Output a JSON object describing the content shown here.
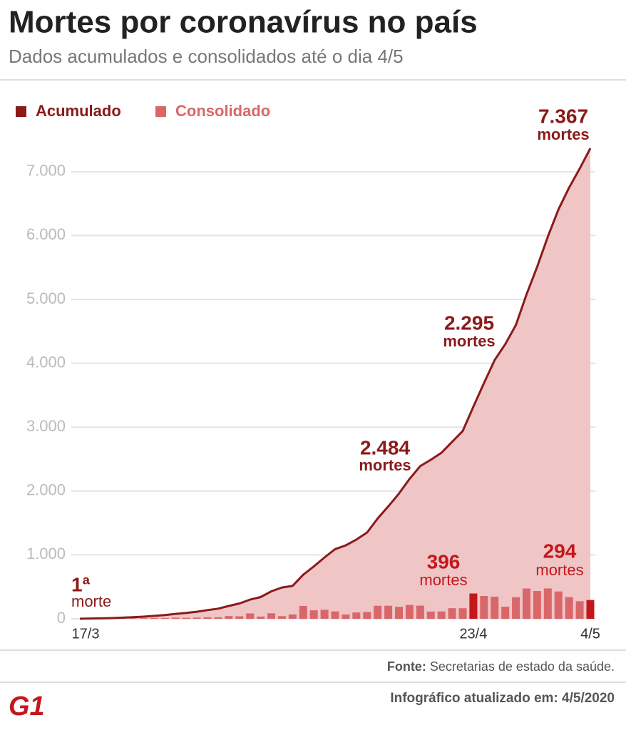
{
  "header": {
    "title": "Mortes por coronavírus no país",
    "subtitle": "Dados acumulados e consolidados até o dia 4/5"
  },
  "chart_data": {
    "type": "area-bar",
    "categories": [
      "17/3",
      null,
      null,
      null,
      null,
      null,
      null,
      null,
      null,
      null,
      null,
      null,
      null,
      null,
      null,
      null,
      null,
      null,
      null,
      null,
      null,
      null,
      null,
      null,
      null,
      null,
      null,
      null,
      null,
      null,
      null,
      null,
      null,
      null,
      null,
      null,
      null,
      "23/4",
      null,
      null,
      null,
      null,
      null,
      null,
      null,
      null,
      null,
      null,
      "4/5"
    ],
    "series": [
      {
        "name": "Acumulado",
        "color": "#8b1a1a",
        "fill": "#efc5c6",
        "values": [
          1,
          4,
          7,
          11,
          18,
          25,
          34,
          46,
          59,
          77,
          92,
          111,
          136,
          159,
          201,
          240,
          300,
          340,
          430,
          490,
          515,
          690,
          820,
          960,
          1090,
          1150,
          1240,
          1350,
          1570,
          1760,
          1960,
          2190,
          2390,
          2490,
          2600,
          2770,
          2940,
          3320,
          3690,
          4050,
          4300,
          4600,
          5080,
          5510,
          5980,
          6410,
          6750,
          7050,
          7367
        ]
      },
      {
        "name": "Consolidado",
        "color": "#d9676a",
        "values": [
          1,
          3,
          3,
          4,
          7,
          7,
          9,
          12,
          13,
          18,
          15,
          19,
          25,
          23,
          42,
          39,
          84,
          35,
          86,
          41,
          67,
          201,
          133,
          141,
          115,
          68,
          99,
          105,
          204,
          204,
          188,
          217,
          206,
          113,
          115,
          166,
          165,
          396,
          357,
          346,
          189,
          338,
          474,
          435,
          475,
          428,
          340,
          275,
          294
        ]
      }
    ],
    "ylim": [
      0,
      7400
    ],
    "yticks": [
      0,
      {
        "value": 1000,
        "label": "1.000"
      },
      {
        "value": 2000,
        "label": "2.000"
      },
      {
        "value": 3000,
        "label": "3.000"
      },
      {
        "value": 4000,
        "label": "4.000"
      },
      {
        "value": 5000,
        "label": "5.000"
      },
      {
        "value": 6000,
        "label": "6.000"
      },
      {
        "value": 7000,
        "label": "7.000"
      }
    ],
    "grid": true,
    "highlight_color": "#c4171c",
    "annotations": [
      {
        "text": "7.367",
        "sub": "mortes"
      },
      {
        "text": "2.295",
        "sub": "mortes"
      },
      {
        "text": "2.484",
        "sub": "mortes"
      },
      {
        "text": "396",
        "sub": "mortes"
      },
      {
        "text": "294",
        "sub": "mortes"
      },
      {
        "text": "1ª",
        "sub": "morte"
      }
    ]
  },
  "footer": {
    "source_label": "Fonte:",
    "source": "Secretarias de estado da saúde.",
    "updated": "Infográfico atualizado em: 4/5/2020",
    "logo": "G1"
  }
}
